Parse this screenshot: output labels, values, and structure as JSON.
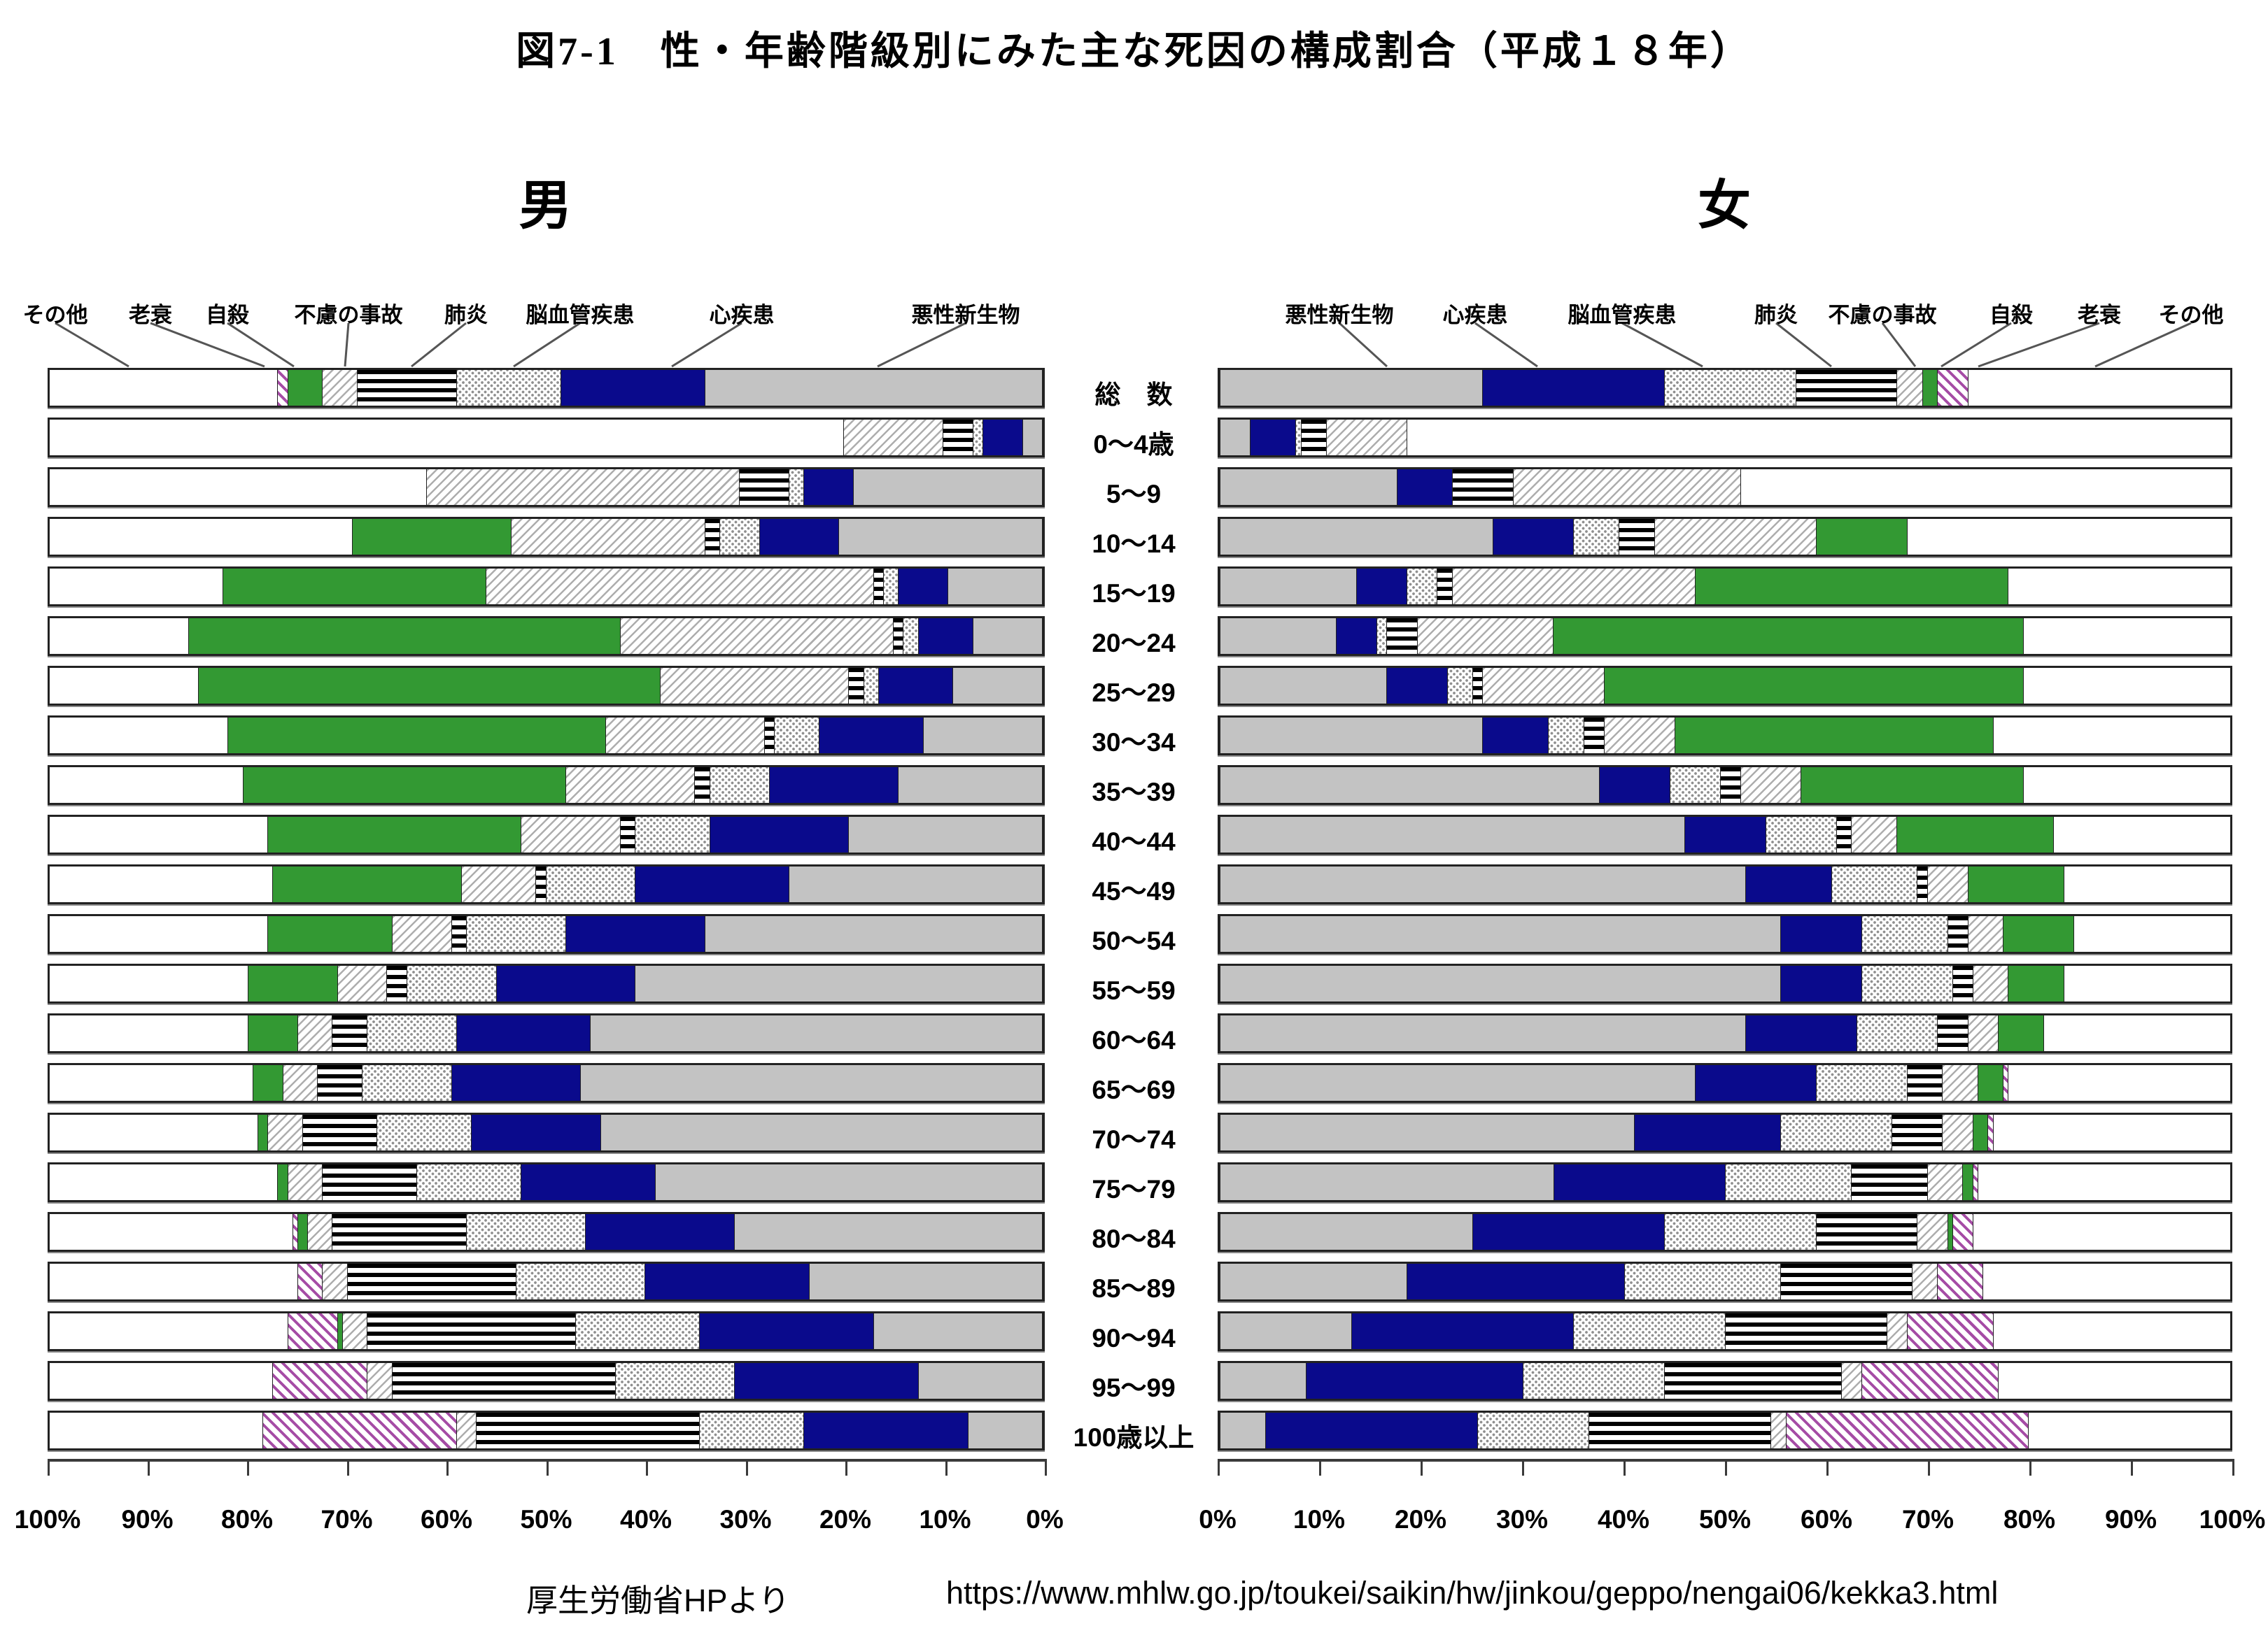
{
  "title": "図7-1　性・年齢階級別にみた主な死因の構成割合（平成１８年）",
  "footer": {
    "source": "厚生労働省HPより",
    "url": "https://www.mhlw.go.jp/toukei/saikin/hw/jinkou/geppo/nengai06/kekka3.html"
  },
  "causes": [
    {
      "key": "malignant",
      "label": "悪性新生物",
      "pattern": "solid",
      "color": "#c3c3c3"
    },
    {
      "key": "heart",
      "label": "心疾患",
      "pattern": "solid",
      "color": "#0a0a8c"
    },
    {
      "key": "cerebrovascular",
      "label": "脳血管疾患",
      "pattern": "gray-dots-on-white",
      "color": "#8f8f8f"
    },
    {
      "key": "pneumonia",
      "label": "肺炎",
      "pattern": "black-horizontal-stripes",
      "color": "#000000"
    },
    {
      "key": "accidents",
      "label": "不慮の事故",
      "pattern": "gray-diagonal-hatch",
      "color": "#adadad"
    },
    {
      "key": "suicide",
      "label": "自殺",
      "pattern": "solid",
      "color": "#339933"
    },
    {
      "key": "senility",
      "label": "老衰",
      "pattern": "purple-diagonal-hatch",
      "color": "#a54ca5"
    },
    {
      "key": "other",
      "label": "その他",
      "pattern": "solid",
      "color": "#ffffff"
    }
  ],
  "chart_data": [
    {
      "type": "bar",
      "stacked": true,
      "orientation": "horizontal",
      "heading": "男",
      "sex": "male",
      "axis": {
        "direction": "right-to-left",
        "unit": "%",
        "ticks": [
          "100%",
          "90%",
          "80%",
          "70%",
          "60%",
          "50%",
          "40%",
          "30%",
          "20%",
          "10%",
          "0%"
        ]
      },
      "categories": [
        "総　数",
        "0～4歳",
        "5～9",
        "10～14",
        "15～19",
        "20～24",
        "25～29",
        "30～34",
        "35～39",
        "40～44",
        "45～49",
        "50～54",
        "55～59",
        "60～64",
        "65～69",
        "70～74",
        "75～79",
        "80～84",
        "85～89",
        "90～94",
        "95～99",
        "100歳以上"
      ],
      "series": [
        {
          "key": "malignant",
          "name": "悪性新生物",
          "values": [
            34,
            2,
            19,
            20.5,
            9.5,
            7,
            9,
            12,
            14.5,
            19.5,
            25.5,
            34,
            41,
            45.5,
            46.5,
            44.5,
            39,
            31,
            23.5,
            17,
            12.5,
            7.5
          ]
        },
        {
          "key": "heart",
          "name": "心疾患",
          "values": [
            14.5,
            4,
            5,
            8,
            5,
            5.5,
            7.5,
            10.5,
            13,
            14,
            15.5,
            14,
            14,
            13.5,
            13,
            13,
            13.5,
            15,
            16.5,
            17.5,
            18.5,
            16.5
          ]
        },
        {
          "key": "cerebrovascular",
          "name": "脳血管疾患",
          "values": [
            10.5,
            1,
            1.5,
            4,
            1.5,
            1.5,
            1.5,
            4.5,
            6,
            7.5,
            9,
            10,
            9,
            9,
            9,
            9.5,
            10.5,
            12,
            13,
            12.5,
            12,
            10.5
          ]
        },
        {
          "key": "pneumonia",
          "name": "肺炎",
          "values": [
            10,
            3,
            5,
            1.5,
            1,
            1,
            1.5,
            1,
            1.5,
            1.5,
            1,
            1.5,
            2,
            3.5,
            4.5,
            7.5,
            9.5,
            13.5,
            17,
            21,
            22.5,
            22.5
          ]
        },
        {
          "key": "accidents",
          "name": "不慮の事故",
          "values": [
            3.5,
            10,
            31.5,
            19.5,
            39,
            27.5,
            19,
            16,
            13,
            10,
            7.5,
            6,
            5,
            3.5,
            3.5,
            3.5,
            3.5,
            2.5,
            2.5,
            2.5,
            2.5,
            2
          ]
        },
        {
          "key": "suicide",
          "name": "自殺",
          "values": [
            3.5,
            0,
            0,
            16,
            26.5,
            43.5,
            46.5,
            38,
            32.5,
            25.5,
            19,
            12.5,
            9,
            5,
            3,
            1,
            1,
            1,
            0,
            0.5,
            0,
            0
          ]
        },
        {
          "key": "senility",
          "name": "老衰",
          "values": [
            1,
            0,
            0,
            0,
            0,
            0,
            0,
            0,
            0,
            0,
            0,
            0,
            0,
            0,
            0,
            0,
            0,
            0.5,
            2.5,
            5,
            9.5,
            19.5
          ]
        },
        {
          "key": "other",
          "name": "その他",
          "values": [
            23,
            80,
            38,
            30.5,
            17.5,
            14,
            15,
            18,
            19.5,
            22,
            22.5,
            22,
            20,
            20,
            20.5,
            21,
            23,
            24.5,
            25,
            24,
            22.5,
            21.5
          ]
        }
      ]
    },
    {
      "type": "bar",
      "stacked": true,
      "orientation": "horizontal",
      "heading": "女",
      "sex": "female",
      "axis": {
        "direction": "left-to-right",
        "unit": "%",
        "ticks": [
          "0%",
          "10%",
          "20%",
          "30%",
          "40%",
          "50%",
          "60%",
          "70%",
          "80%",
          "90%",
          "100%"
        ]
      },
      "categories": [
        "総　数",
        "0～4歳",
        "5～9",
        "10～14",
        "15～19",
        "20～24",
        "25～29",
        "30～34",
        "35～39",
        "40～44",
        "45～49",
        "50～54",
        "55～59",
        "60～64",
        "65～69",
        "70～74",
        "75～79",
        "80～84",
        "85～89",
        "90～94",
        "95～99",
        "100歳以上"
      ],
      "series": [
        {
          "key": "malignant",
          "name": "悪性新生物",
          "values": [
            26,
            3,
            17.5,
            27,
            13.5,
            11.5,
            16.5,
            26,
            37.5,
            46,
            52,
            55.5,
            55.5,
            52,
            47,
            41,
            33,
            25,
            18.5,
            13,
            8.5,
            4.5
          ]
        },
        {
          "key": "heart",
          "name": "心疾患",
          "values": [
            18,
            4.5,
            5.5,
            8,
            5,
            4,
            6,
            6.5,
            7,
            8,
            8.5,
            8,
            8,
            11,
            12,
            14.5,
            17,
            19,
            21.5,
            22,
            21.5,
            21
          ]
        },
        {
          "key": "cerebrovascular",
          "name": "脳血管疾患",
          "values": [
            13,
            0.5,
            0,
            4.5,
            3,
            1,
            2.5,
            3.5,
            5,
            7,
            8.5,
            8.5,
            9,
            8,
            9,
            11,
            12.5,
            15,
            15.5,
            15,
            14,
            11
          ]
        },
        {
          "key": "pneumonia",
          "name": "肺炎",
          "values": [
            10,
            2.5,
            6,
            3.5,
            1.5,
            3,
            1,
            2,
            2,
            1.5,
            1,
            2,
            2,
            3,
            3.5,
            5,
            7.5,
            10,
            13,
            16,
            17.5,
            18
          ]
        },
        {
          "key": "accidents",
          "name": "不慮の事故",
          "values": [
            2.5,
            8,
            22.5,
            16,
            24,
            13.5,
            12,
            7,
            6,
            4.5,
            4,
            3.5,
            3.5,
            3,
            3.5,
            3,
            3.5,
            3,
            2.5,
            2,
            2,
            1.5
          ]
        },
        {
          "key": "suicide",
          "name": "自殺",
          "values": [
            1.5,
            0,
            0,
            9,
            31,
            46.5,
            41.5,
            31.5,
            22,
            15.5,
            9.5,
            7,
            5.5,
            4.5,
            2.5,
            1.5,
            1,
            0.5,
            0,
            0,
            0,
            0
          ]
        },
        {
          "key": "senility",
          "name": "老衰",
          "values": [
            3,
            0,
            0,
            0,
            0,
            0,
            0,
            0,
            0,
            0,
            0,
            0,
            0,
            0,
            0.5,
            0.5,
            0.5,
            2,
            4.5,
            8.5,
            13.5,
            24
          ]
        },
        {
          "key": "other",
          "name": "その他",
          "values": [
            26,
            81.5,
            48.5,
            32,
            22,
            20.5,
            20.5,
            23.5,
            20.5,
            17.5,
            16.5,
            15.5,
            16.5,
            18.5,
            22,
            23.5,
            25,
            25.5,
            24.5,
            23.5,
            23,
            20
          ]
        }
      ]
    }
  ]
}
